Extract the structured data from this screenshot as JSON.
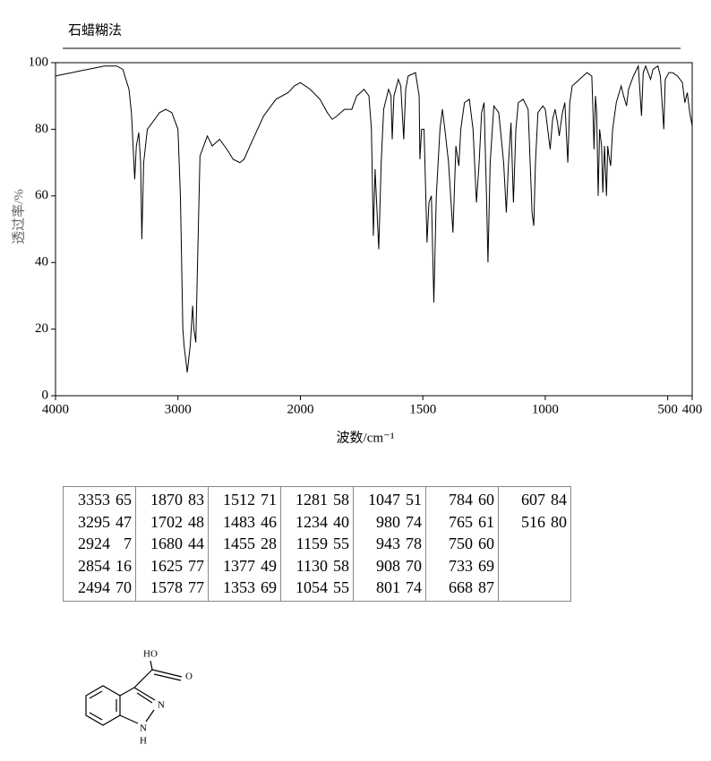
{
  "chart_data": {
    "type": "line",
    "title": "石蜡糊法",
    "xlabel": "波数/cm⁻¹",
    "ylabel": "透过率/%",
    "xlim": [
      4000,
      400
    ],
    "xticks": [
      4000,
      3000,
      2000,
      1500,
      1000,
      500,
      400
    ],
    "ylim": [
      0,
      100
    ],
    "yticks": [
      0,
      20,
      40,
      60,
      80,
      100
    ],
    "color": "#000000",
    "x": [
      4000,
      3800,
      3600,
      3500,
      3450,
      3400,
      3380,
      3353,
      3340,
      3320,
      3305,
      3295,
      3280,
      3250,
      3150,
      3100,
      3050,
      3000,
      2980,
      2960,
      2950,
      2924,
      2900,
      2880,
      2870,
      2854,
      2840,
      2820,
      2800,
      2760,
      2720,
      2660,
      2600,
      2550,
      2494,
      2460,
      2400,
      2300,
      2200,
      2100,
      2050,
      2000,
      1960,
      1920,
      1890,
      1870,
      1850,
      1820,
      1790,
      1770,
      1740,
      1720,
      1710,
      1702,
      1695,
      1680,
      1670,
      1660,
      1640,
      1630,
      1625,
      1618,
      1600,
      1590,
      1578,
      1570,
      1560,
      1530,
      1515,
      1512,
      1505,
      1495,
      1483,
      1475,
      1465,
      1455,
      1445,
      1430,
      1420,
      1410,
      1395,
      1377,
      1365,
      1353,
      1345,
      1330,
      1310,
      1295,
      1281,
      1270,
      1260,
      1250,
      1240,
      1234,
      1225,
      1210,
      1190,
      1170,
      1159,
      1150,
      1140,
      1130,
      1120,
      1110,
      1090,
      1070,
      1054,
      1047,
      1040,
      1030,
      1010,
      1000,
      990,
      980,
      970,
      960,
      950,
      943,
      930,
      920,
      908,
      900,
      890,
      860,
      830,
      810,
      805,
      801,
      795,
      790,
      784,
      778,
      770,
      765,
      758,
      750,
      745,
      740,
      733,
      725,
      710,
      690,
      680,
      668,
      660,
      640,
      620,
      607,
      600,
      590,
      570,
      560,
      540,
      530,
      516,
      510,
      495,
      480,
      460,
      440,
      430,
      420,
      410,
      400
    ],
    "y": [
      96,
      97.5,
      99,
      99,
      98,
      92,
      85,
      65,
      75,
      79,
      70,
      47,
      70,
      80,
      85,
      86,
      85,
      80,
      60,
      20,
      15,
      7,
      15,
      27,
      20,
      16,
      40,
      72,
      74,
      78,
      75,
      77,
      74,
      71,
      70,
      71,
      76,
      84,
      89,
      91,
      93,
      94,
      92,
      89,
      85,
      83,
      84,
      86,
      86,
      90,
      92,
      90,
      80,
      48,
      68,
      44,
      70,
      86,
      92,
      90,
      77,
      90,
      95,
      93,
      77,
      92,
      96,
      97,
      90,
      71,
      80,
      80,
      46,
      58,
      60,
      28,
      60,
      80,
      86,
      80,
      70,
      49,
      75,
      69,
      80,
      88,
      89,
      80,
      58,
      70,
      85,
      88,
      60,
      40,
      70,
      87,
      85,
      70,
      55,
      70,
      82,
      58,
      80,
      88,
      89,
      86,
      55,
      51,
      70,
      85,
      87,
      86,
      80,
      74,
      83,
      86,
      82,
      78,
      85,
      88,
      70,
      88,
      93,
      95,
      97,
      96,
      85,
      74,
      90,
      85,
      60,
      80,
      75,
      61,
      75,
      60,
      75,
      72,
      69,
      80,
      88,
      93,
      90,
      87,
      92,
      96,
      99,
      84,
      97,
      99,
      95,
      98,
      99,
      96,
      80,
      95,
      97,
      97,
      96,
      94,
      88,
      91,
      85,
      81
    ]
  },
  "table": {
    "columns": [
      [
        [
          3353,
          65
        ],
        [
          3295,
          47
        ],
        [
          2924,
          7
        ],
        [
          2854,
          16
        ],
        [
          2494,
          70
        ]
      ],
      [
        [
          1870,
          83
        ],
        [
          1702,
          48
        ],
        [
          1680,
          44
        ],
        [
          1625,
          77
        ],
        [
          1578,
          77
        ]
      ],
      [
        [
          1512,
          71
        ],
        [
          1483,
          46
        ],
        [
          1455,
          28
        ],
        [
          1377,
          49
        ],
        [
          1353,
          69
        ]
      ],
      [
        [
          1281,
          58
        ],
        [
          1234,
          40
        ],
        [
          1159,
          55
        ],
        [
          1130,
          58
        ],
        [
          1054,
          55
        ]
      ],
      [
        [
          1047,
          51
        ],
        [
          980,
          74
        ],
        [
          943,
          78
        ],
        [
          908,
          70
        ],
        [
          801,
          74
        ]
      ],
      [
        [
          784,
          60
        ],
        [
          765,
          61
        ],
        [
          750,
          60
        ],
        [
          733,
          69
        ],
        [
          668,
          87
        ]
      ],
      [
        [
          607,
          84
        ],
        [
          516,
          80
        ]
      ]
    ]
  },
  "structure": {
    "labels": [
      "HO",
      "O",
      "N",
      "N",
      "H"
    ]
  }
}
